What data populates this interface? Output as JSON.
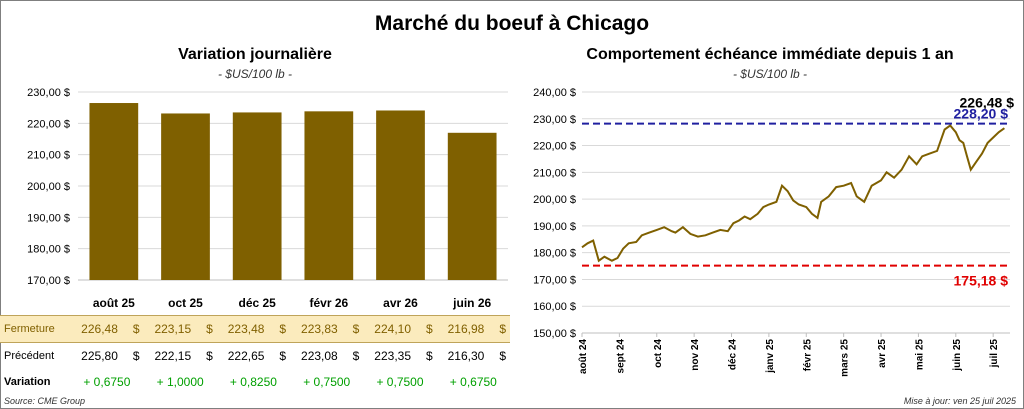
{
  "title": "Marché du boeuf à Chicago",
  "chart_data": [
    {
      "type": "bar",
      "title": "Variation journalière",
      "subtitle": "- $US/100 lb -",
      "categories": [
        "août 25",
        "oct 25",
        "déc 25",
        "févr 26",
        "avr 26",
        "juin 26"
      ],
      "values": [
        226.48,
        223.15,
        223.48,
        223.83,
        224.1,
        216.98
      ],
      "ylim": [
        170,
        230
      ],
      "yticks": [
        "170,00 $",
        "180,00 $",
        "190,00 $",
        "200,00 $",
        "210,00 $",
        "220,00 $",
        "230,00 $"
      ],
      "color": "#7f6000",
      "grid": true
    },
    {
      "type": "line",
      "title": "Comportement échéance immédiate depuis 1 an",
      "subtitle": "- $US/100 lb -",
      "ylim": [
        150,
        240
      ],
      "yticks": [
        "150,00 $",
        "160,00 $",
        "170,00 $",
        "180,00 $",
        "190,00 $",
        "200,00 $",
        "210,00 $",
        "220,00 $",
        "230,00 $",
        "240,00 $"
      ],
      "x": [
        "août 24",
        "sept 24",
        "oct 24",
        "nov 24",
        "déc 24",
        "janv 25",
        "févr 25",
        "mars 25",
        "avr 25",
        "mai 25",
        "juin 25",
        "juil 25"
      ],
      "series": [
        {
          "color": "#7f6000",
          "values": [
            [
              0,
              182.0
            ],
            [
              0.15,
              183.5
            ],
            [
              0.3,
              184.5
            ],
            [
              0.45,
              177.0
            ],
            [
              0.6,
              178.5
            ],
            [
              0.8,
              177.0
            ],
            [
              0.95,
              178.0
            ],
            [
              1.1,
              181.5
            ],
            [
              1.25,
              183.5
            ],
            [
              1.45,
              184.0
            ],
            [
              1.6,
              186.5
            ],
            [
              1.8,
              187.5
            ],
            [
              2.0,
              188.5
            ],
            [
              2.2,
              189.5
            ],
            [
              2.4,
              188.0
            ],
            [
              2.5,
              187.5
            ],
            [
              2.7,
              189.5
            ],
            [
              2.9,
              187.0
            ],
            [
              3.1,
              186.0
            ],
            [
              3.3,
              186.5
            ],
            [
              3.5,
              187.5
            ],
            [
              3.7,
              188.5
            ],
            [
              3.9,
              188.0
            ],
            [
              4.05,
              191.0
            ],
            [
              4.2,
              192.0
            ],
            [
              4.35,
              193.5
            ],
            [
              4.5,
              192.5
            ],
            [
              4.7,
              194.5
            ],
            [
              4.85,
              197.0
            ],
            [
              5.0,
              198.0
            ],
            [
              5.2,
              199.0
            ],
            [
              5.35,
              205.0
            ],
            [
              5.5,
              203.0
            ],
            [
              5.65,
              199.5
            ],
            [
              5.8,
              198.0
            ],
            [
              6.0,
              197.0
            ],
            [
              6.15,
              194.5
            ],
            [
              6.3,
              193.0
            ],
            [
              6.4,
              199.0
            ],
            [
              6.6,
              201.0
            ],
            [
              6.8,
              204.5
            ],
            [
              7.0,
              205.0
            ],
            [
              7.2,
              206.0
            ],
            [
              7.35,
              201.0
            ],
            [
              7.55,
              199.0
            ],
            [
              7.75,
              205.0
            ],
            [
              8.0,
              207.0
            ],
            [
              8.15,
              210.0
            ],
            [
              8.35,
              208.0
            ],
            [
              8.55,
              211.0
            ],
            [
              8.75,
              216.0
            ],
            [
              8.95,
              213.0
            ],
            [
              9.1,
              216.0
            ],
            [
              9.3,
              217.0
            ],
            [
              9.5,
              218.0
            ],
            [
              9.7,
              226.0
            ],
            [
              9.85,
              227.5
            ],
            [
              10.0,
              225.0
            ],
            [
              10.1,
              222.0
            ],
            [
              10.2,
              221.0
            ],
            [
              10.3,
              216.0
            ],
            [
              10.4,
              211.0
            ],
            [
              10.55,
              214.0
            ],
            [
              10.7,
              217.0
            ],
            [
              10.85,
              221.0
            ],
            [
              11.0,
              223.0
            ],
            [
              11.15,
              225.0
            ],
            [
              11.3,
              226.48
            ]
          ]
        }
      ],
      "annotations": [
        {
          "value": 228.2,
          "label": "228,20 $",
          "color": "#2020a0",
          "style": "dashed"
        },
        {
          "value": 175.18,
          "label": "175,18 $",
          "color": "#e00000",
          "style": "dashed"
        },
        {
          "label": "226,48 $",
          "color": "#000000"
        }
      ],
      "grid": true
    }
  ],
  "table": {
    "rows": [
      {
        "label": "Fermeture",
        "values": [
          "226,48",
          "223,15",
          "223,48",
          "223,83",
          "224,10",
          "216,98"
        ],
        "unit": "$"
      },
      {
        "label": "Précédent",
        "values": [
          "225,80",
          "222,15",
          "222,65",
          "223,08",
          "223,35",
          "216,30"
        ],
        "unit": "$"
      },
      {
        "label": "Variation",
        "values": [
          "+ 0,6750",
          "+ 1,0000",
          "+ 0,8250",
          "+ 0,7500",
          "+ 0,7500",
          "+ 0,6750"
        ]
      }
    ]
  },
  "source": "Source: CME Group",
  "updated": "Mise à jour: ven 25 juil 2025"
}
